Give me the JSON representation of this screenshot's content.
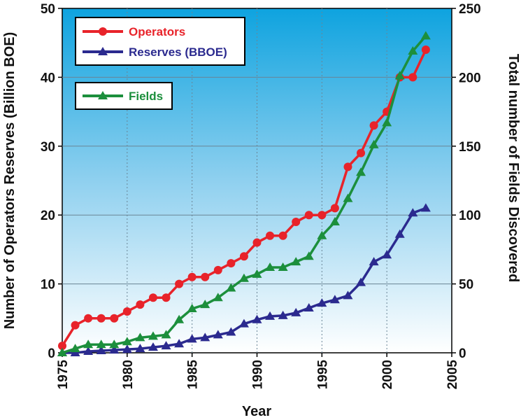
{
  "chart_data": {
    "type": "line",
    "title": "",
    "xlabel": "Year",
    "ylabel_left": "Number of Operators Reserves (Billion BOE)",
    "ylabel_right": "Total number of Fields Discovered",
    "xlim": [
      1975,
      2005
    ],
    "ylim_left": [
      0,
      50
    ],
    "ylim_right": [
      0,
      250
    ],
    "x_ticks": [
      "1975",
      "1980",
      "1985",
      "1990",
      "1995",
      "2000",
      "2005"
    ],
    "y_ticks_left": [
      "0",
      "10",
      "20",
      "30",
      "40",
      "50"
    ],
    "y_ticks_right": [
      "0",
      "50",
      "100",
      "150",
      "200",
      "250"
    ],
    "grid": true,
    "legend_position": "top-left",
    "x": [
      1975,
      1976,
      1977,
      1978,
      1979,
      1980,
      1981,
      1982,
      1983,
      1984,
      1985,
      1986,
      1987,
      1988,
      1989,
      1990,
      1991,
      1992,
      1993,
      1994,
      1995,
      1996,
      1997,
      1998,
      1999,
      2000,
      2001,
      2002,
      2003
    ],
    "series": [
      {
        "name": "Operators",
        "axis": "left",
        "color": "#e8232a",
        "marker": "circle",
        "values": [
          1,
          4,
          5,
          5,
          5,
          6,
          7,
          8,
          8,
          10,
          11,
          11,
          12,
          13,
          14,
          16,
          17,
          17,
          19,
          20,
          20,
          21,
          27,
          29,
          33,
          35,
          40,
          40,
          44
        ]
      },
      {
        "name": "Reserves (BBOE)",
        "axis": "left",
        "color": "#2b2a8f",
        "marker": "triangle",
        "values": [
          0,
          0,
          0.2,
          0.3,
          0.4,
          0.5,
          0.6,
          0.8,
          1.0,
          1.3,
          2.0,
          2.2,
          2.6,
          3.0,
          4.2,
          4.8,
          5.3,
          5.4,
          5.8,
          6.5,
          7.2,
          7.7,
          8.3,
          10.2,
          13.2,
          14.2,
          17.2,
          20.3,
          21.0
        ]
      },
      {
        "name": "Fields",
        "axis": "right",
        "color": "#1c8f3c",
        "marker": "triangle",
        "values": [
          0,
          3,
          6,
          6,
          6,
          8,
          11,
          12,
          13,
          24,
          32,
          35,
          40,
          47,
          54,
          57,
          62,
          62,
          66,
          70,
          85,
          95,
          112,
          131,
          151,
          167,
          201,
          219,
          230
        ]
      }
    ],
    "legend": {
      "box1": [
        "Operators",
        "Reserves (BBOE)"
      ],
      "box2": [
        "Fields"
      ]
    }
  }
}
